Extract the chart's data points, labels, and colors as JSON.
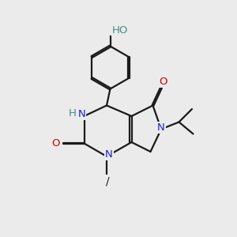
{
  "bg_color": "#ebebeb",
  "bond_color": "#1a1a1a",
  "N_color": "#2020cc",
  "O_color": "#cc0000",
  "H_color": "#4a8a8a",
  "line_width": 1.6,
  "dbo": 0.055,
  "figsize": [
    3.0,
    3.0
  ],
  "dpi": 100,
  "xlim": [
    0,
    10
  ],
  "ylim": [
    0,
    10
  ],
  "HO_text": "HO",
  "H_text": "H",
  "N_text": "N",
  "O_text": "O",
  "methyl_text": "/"
}
